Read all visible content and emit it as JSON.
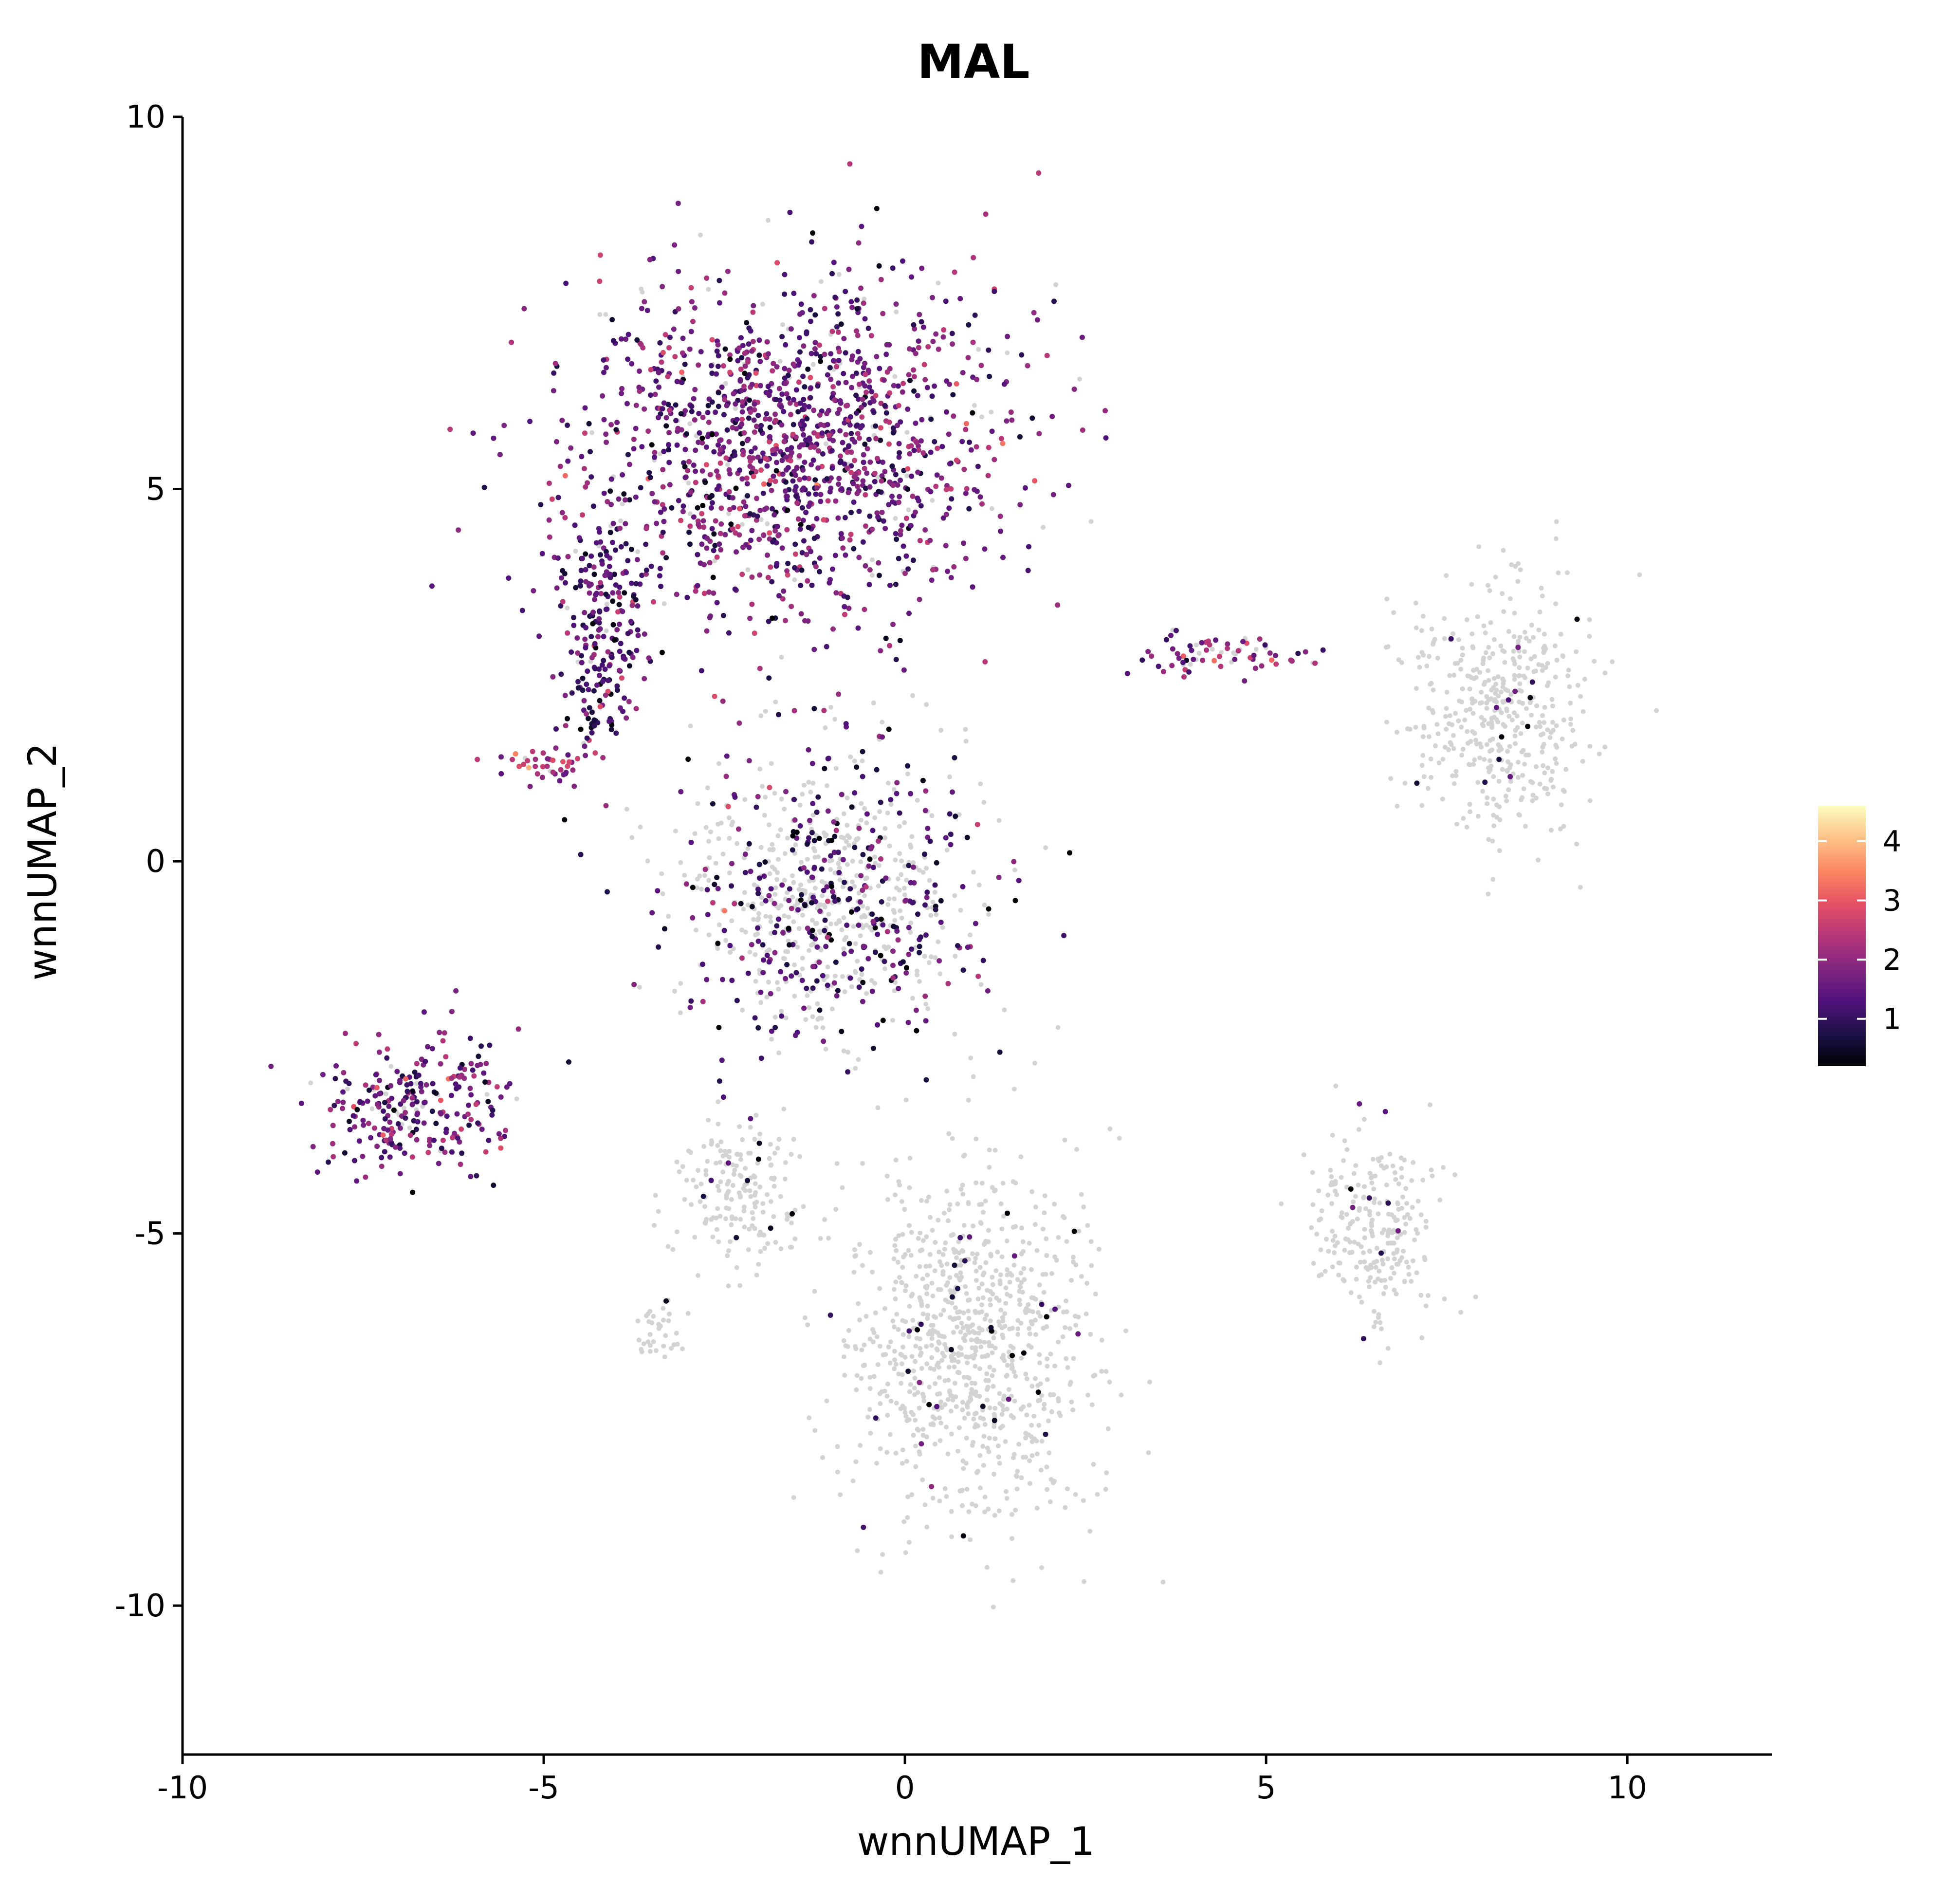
{
  "chart_data": {
    "type": "scatter",
    "title": "MAL",
    "xlabel": "wnnUMAP_1",
    "ylabel": "wnnUMAP_2",
    "xlim": [
      -10,
      12
    ],
    "ylim": [
      -12,
      10
    ],
    "x_ticks": [
      -10,
      -5,
      0,
      5,
      10
    ],
    "y_ticks": [
      -10,
      -5,
      0,
      5,
      10
    ],
    "x_tick_labels": [
      "-10",
      "-5",
      "0",
      "5",
      "10"
    ],
    "y_tick_labels": [
      "-10",
      "-5",
      "0",
      "5",
      "10"
    ],
    "grid": false,
    "background_point_color": "#d3d3d3",
    "color_scale": {
      "name": "magma",
      "min": 0.2,
      "max": 4.6,
      "ticks": [
        1,
        2,
        3,
        4
      ],
      "tick_labels": [
        "1",
        "2",
        "3",
        "4"
      ],
      "colors": [
        "#000004",
        "#1d1147",
        "#51127c",
        "#822681",
        "#b63679",
        "#e65164",
        "#fb8861",
        "#fec287",
        "#fcfdbf"
      ]
    },
    "legend_position": "right",
    "clusters": [
      {
        "region": "upper cap",
        "cx": -1.6,
        "cy": 5.6,
        "sx": 2.6,
        "sy": 2.1,
        "expression": "high",
        "mean": 1.6
      },
      {
        "region": "upper-left shoulder",
        "cx": -4.2,
        "cy": 3.0,
        "sx": 0.6,
        "sy": 1.6,
        "expression": "high",
        "mean": 1.3
      },
      {
        "region": "left nub",
        "cx": -5.0,
        "cy": 1.3,
        "sx": 0.6,
        "sy": 0.25,
        "expression": "high",
        "mean": 2.1
      },
      {
        "region": "far-left lobe",
        "cx": -6.8,
        "cy": -3.3,
        "sx": 1.3,
        "sy": 0.8,
        "expression": "high",
        "mean": 1.6
      },
      {
        "region": "central bridge",
        "cx": -1.0,
        "cy": -0.5,
        "sx": 1.8,
        "sy": 1.8,
        "expression": "mixed",
        "mean": 1.2
      },
      {
        "region": "lower-middle",
        "cx": 0.8,
        "cy": -6.5,
        "sx": 1.6,
        "sy": 2.2,
        "expression": "low",
        "mean": 0.0
      },
      {
        "region": "left-lower strand",
        "cx": -2.3,
        "cy": -4.5,
        "sx": 0.8,
        "sy": 0.9,
        "expression": "low",
        "mean": 0.0
      },
      {
        "region": "small left-bottom island",
        "cx": -3.4,
        "cy": -6.3,
        "sx": 0.35,
        "sy": 0.4,
        "expression": "low",
        "mean": 0.0
      },
      {
        "region": "right upper",
        "cx": 8.2,
        "cy": 2.0,
        "sx": 1.1,
        "sy": 1.6,
        "expression": "low",
        "mean": 0.0
      },
      {
        "region": "right lower",
        "cx": 6.5,
        "cy": -5.0,
        "sx": 0.8,
        "sy": 1.2,
        "expression": "low",
        "mean": 0.0
      },
      {
        "region": "diagonal streak",
        "cx": 4.5,
        "cy": 2.8,
        "sx": 1.1,
        "sy": 0.25,
        "expression": "medium",
        "mean": 1.8
      }
    ]
  }
}
